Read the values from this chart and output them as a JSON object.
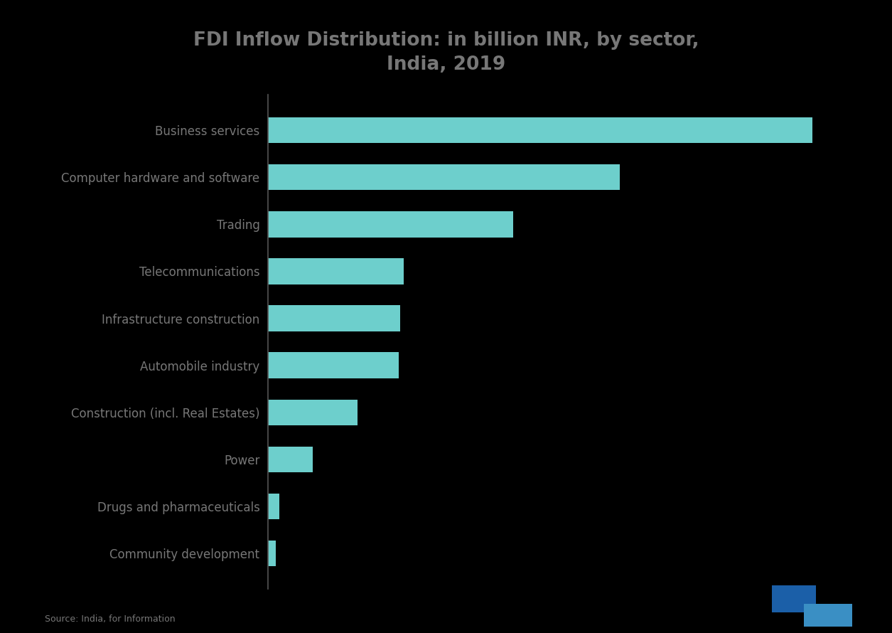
{
  "title": "FDI Inflow Distribution: in billion INR, by sector,\nIndia, 2019",
  "categories": [
    "Business services",
    "Computer hardware and software",
    "Trading",
    "Telecommunications",
    "Infrastructure construction",
    "Automobile industry",
    "Construction (incl. Real Estates)",
    "Power",
    "Drugs and pharmaceuticals",
    "Community development"
  ],
  "values": [
    820,
    530,
    370,
    205,
    200,
    198,
    135,
    68,
    18,
    12
  ],
  "bar_color": "#6dcfcc",
  "background_color": "#000000",
  "title_color": "#777777",
  "label_color": "#777777",
  "spine_color": "#555555",
  "title_fontsize": 19,
  "label_fontsize": 12,
  "source_text": "Source: India, for Information",
  "xlim": [
    0,
    900
  ]
}
